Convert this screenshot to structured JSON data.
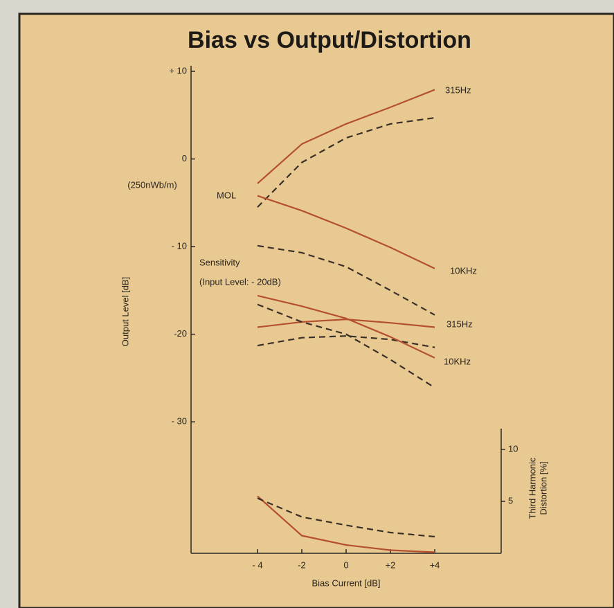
{
  "chart_data": {
    "type": "line",
    "title": "Bias vs Output/Distortion",
    "xlabel": "Bias Current [dB]",
    "ylabel": "Output Level [dB]",
    "y2label": [
      "Third Harmonic",
      "Distortion [%]"
    ],
    "annotations": [
      "(250nWb/m)",
      "MOL",
      "Sensitivity",
      "(Input Level: - 20dB)",
      "315Hz",
      "10KHz",
      "315Hz",
      "10KHz"
    ],
    "x": [
      -4,
      -2,
      0,
      2,
      4
    ],
    "xlim": [
      -7,
      7
    ],
    "xticks": [
      {
        "value": -4,
        "label": "- 4"
      },
      {
        "value": -2,
        "label": "-2"
      },
      0,
      {
        "value": 2,
        "label": "+2"
      },
      {
        "value": 4,
        "label": "+4"
      }
    ],
    "ylim": [
      -45,
      10
    ],
    "yticks": [
      {
        "value": 10,
        "label": "+ 10"
      },
      0,
      {
        "value": -10,
        "label": "- 10"
      },
      {
        "value": -20,
        "label": "-20"
      },
      {
        "value": -30,
        "label": "- 30"
      }
    ],
    "y2lim": [
      0,
      12
    ],
    "y2ticks": [
      5,
      10
    ],
    "series": [
      {
        "color": "#b4502f",
        "style": "solid",
        "values": [
          -2.8,
          1.7,
          4.0,
          5.9,
          7.9
        ]
      },
      {
        "color": "#3a3028",
        "style": "dashed",
        "values": [
          -5.5,
          -0.4,
          2.4,
          4.0,
          4.7
        ]
      },
      {
        "color": "#b4502f",
        "style": "solid",
        "values": [
          -4.2,
          -5.9,
          -7.9,
          -10.1,
          -12.5
        ]
      },
      {
        "color": "#3a3028",
        "style": "dashed",
        "values": [
          -9.9,
          -10.7,
          -12.3,
          -15.0,
          -17.8
        ]
      },
      {
        "color": "#b4502f",
        "style": "solid",
        "values": [
          -19.2,
          -18.6,
          -18.3,
          -18.7,
          -19.2
        ]
      },
      {
        "color": "#3a3028",
        "style": "dashed",
        "values": [
          -21.3,
          -20.4,
          -20.2,
          -20.6,
          -21.5
        ]
      },
      {
        "color": "#b4502f",
        "style": "solid",
        "values": [
          -15.6,
          -16.8,
          -18.2,
          -20.3,
          -22.7
        ]
      },
      {
        "color": "#3a3028",
        "style": "dashed",
        "values": [
          -16.6,
          -18.6,
          -20.0,
          -22.9,
          -26.1
        ]
      },
      {
        "color": "#b4502f",
        "style": "solid",
        "axis": "y2",
        "values": [
          5.5,
          1.7,
          0.8,
          0.3,
          0.1
        ]
      },
      {
        "color": "#3a3028",
        "style": "dashed",
        "axis": "y2",
        "values": [
          5.3,
          3.5,
          2.7,
          2.0,
          1.6
        ]
      }
    ]
  }
}
